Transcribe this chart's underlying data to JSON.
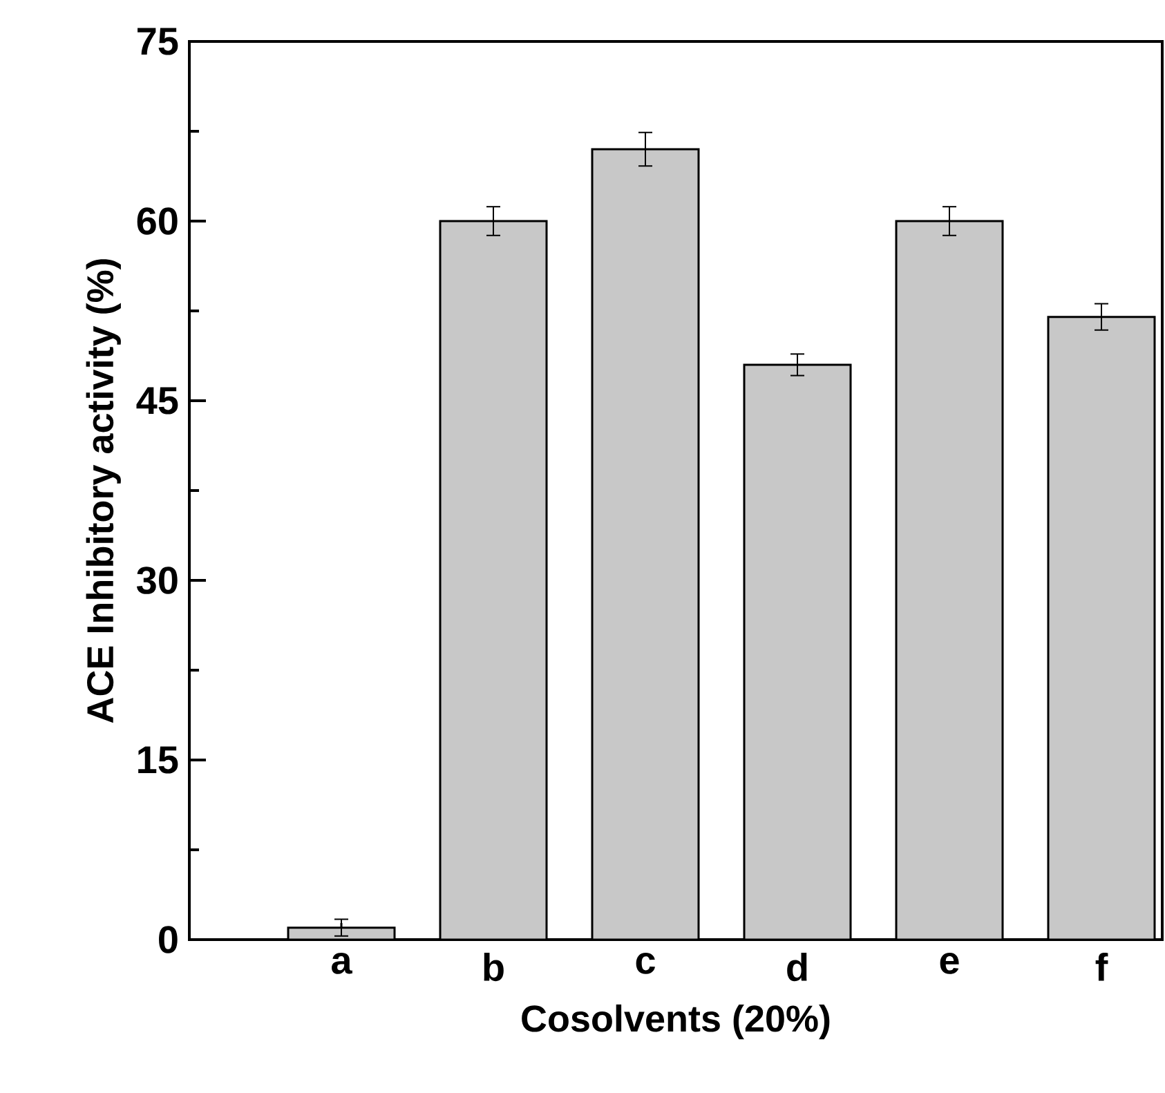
{
  "chart_data": {
    "type": "bar",
    "xlabel": "Cosolvents (20%)",
    "ylabel": "ACE Inhibitory activity (%)",
    "categories": [
      "a",
      "b",
      "c",
      "d",
      "e",
      "f"
    ],
    "values": [
      1,
      60,
      66,
      48,
      60,
      52
    ],
    "errors": [
      0.7,
      1.2,
      1.4,
      0.9,
      1.2,
      1.1
    ],
    "color": "#c8c8c8",
    "ylim": [
      0,
      75
    ],
    "yticks": [
      0,
      15,
      30,
      45,
      60,
      75
    ],
    "grid": false
  }
}
